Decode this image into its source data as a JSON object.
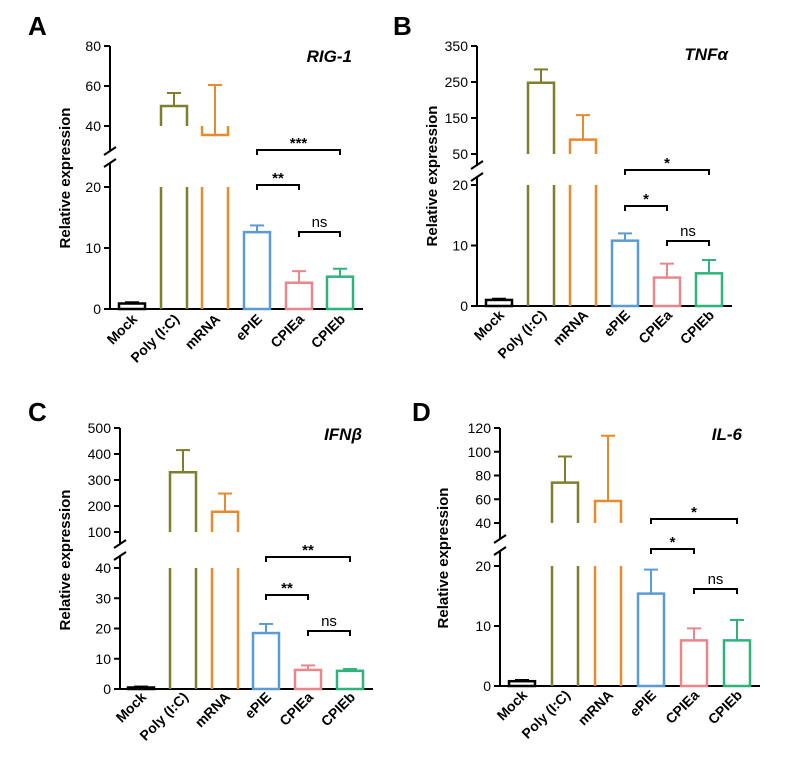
{
  "figure": {
    "categories": [
      "Mock",
      "Poly (I:C)",
      "mRNA",
      "ePIE",
      "CPIEa",
      "CPIEb"
    ],
    "ylabel": "Relative expression",
    "colors": {
      "Mock": "#000000",
      "Poly (I:C)": "#7f7f2b",
      "mRNA": "#e88a2e",
      "ePIE": "#5b9bd5",
      "CPIEa": "#e8868c",
      "CPIEb": "#2eb37a"
    }
  },
  "chart_data": [
    {
      "type": "bar",
      "panel": "A",
      "title": "RIG-1",
      "ylabel": "Relative expression",
      "categories": [
        "Mock",
        "Poly (I:C)",
        "mRNA",
        "ePIE",
        "CPIEa",
        "CPIEb"
      ],
      "values": [
        0.9,
        50,
        35.5,
        12.6,
        4.3,
        5.3
      ],
      "errors": [
        0.2,
        6.5,
        25,
        1.1,
        1.9,
        1.3
      ],
      "axis_break": true,
      "lower_range": [
        0,
        20
      ],
      "upper_range": [
        20,
        80
      ],
      "lower_ticks": [
        0,
        10,
        20
      ],
      "upper_ticks": [
        40,
        60,
        80
      ],
      "significance": [
        {
          "from": "ePIE",
          "to": "CPIEb",
          "label": "***"
        },
        {
          "from": "ePIE",
          "to": "CPIEa",
          "label": "**"
        },
        {
          "from": "CPIEa",
          "to": "CPIEb",
          "label": "ns"
        }
      ]
    },
    {
      "type": "bar",
      "panel": "B",
      "title": "TNFα",
      "ylabel": "Relative expression",
      "categories": [
        "Mock",
        "Poly (I:C)",
        "mRNA",
        "ePIE",
        "CPIEa",
        "CPIEb"
      ],
      "values": [
        1.0,
        248,
        90,
        10.8,
        4.7,
        5.4
      ],
      "errors": [
        0.2,
        37,
        68,
        1.2,
        2.3,
        2.2
      ],
      "axis_break": true,
      "lower_range": [
        0,
        20
      ],
      "upper_range": [
        20,
        350
      ],
      "lower_ticks": [
        0,
        10,
        20
      ],
      "upper_ticks": [
        50,
        150,
        250,
        350
      ],
      "significance": [
        {
          "from": "ePIE",
          "to": "CPIEb",
          "label": "*"
        },
        {
          "from": "ePIE",
          "to": "CPIEa",
          "label": "*"
        },
        {
          "from": "CPIEa",
          "to": "CPIEb",
          "label": "ns"
        }
      ]
    },
    {
      "type": "bar",
      "panel": "C",
      "title": "IFNβ",
      "ylabel": "Relative expression",
      "categories": [
        "Mock",
        "Poly (I:C)",
        "mRNA",
        "ePIE",
        "CPIEa",
        "CPIEb"
      ],
      "values": [
        0.5,
        330,
        178,
        18.5,
        6.3,
        6.0
      ],
      "errors": [
        0.3,
        85,
        70,
        3.0,
        1.5,
        0.6
      ],
      "axis_break": true,
      "lower_range": [
        0,
        40
      ],
      "upper_range": [
        40,
        500
      ],
      "lower_ticks": [
        0,
        10,
        20,
        30,
        40
      ],
      "upper_ticks": [
        100,
        200,
        300,
        400,
        500
      ],
      "significance": [
        {
          "from": "ePIE",
          "to": "CPIEb",
          "label": "**"
        },
        {
          "from": "ePIE",
          "to": "CPIEa",
          "label": "**"
        },
        {
          "from": "CPIEa",
          "to": "CPIEb",
          "label": "ns"
        }
      ]
    },
    {
      "type": "bar",
      "panel": "D",
      "title": "IL-6",
      "ylabel": "Relative expression",
      "categories": [
        "Mock",
        "Poly (I:C)",
        "mRNA",
        "ePIE",
        "CPIEa",
        "CPIEb"
      ],
      "values": [
        0.8,
        74,
        58.5,
        15.4,
        7.6,
        7.6
      ],
      "errors": [
        0.2,
        22,
        55,
        4.0,
        2.0,
        3.4
      ],
      "axis_break": true,
      "lower_range": [
        0,
        20
      ],
      "upper_range": [
        20,
        120
      ],
      "lower_ticks": [
        0,
        10,
        20
      ],
      "upper_ticks": [
        40,
        60,
        80,
        100,
        120
      ],
      "significance": [
        {
          "from": "ePIE",
          "to": "CPIEb",
          "label": "*"
        },
        {
          "from": "ePIE",
          "to": "CPIEa",
          "label": "*"
        },
        {
          "from": "CPIEa",
          "to": "CPIEb",
          "label": "ns"
        }
      ]
    }
  ]
}
